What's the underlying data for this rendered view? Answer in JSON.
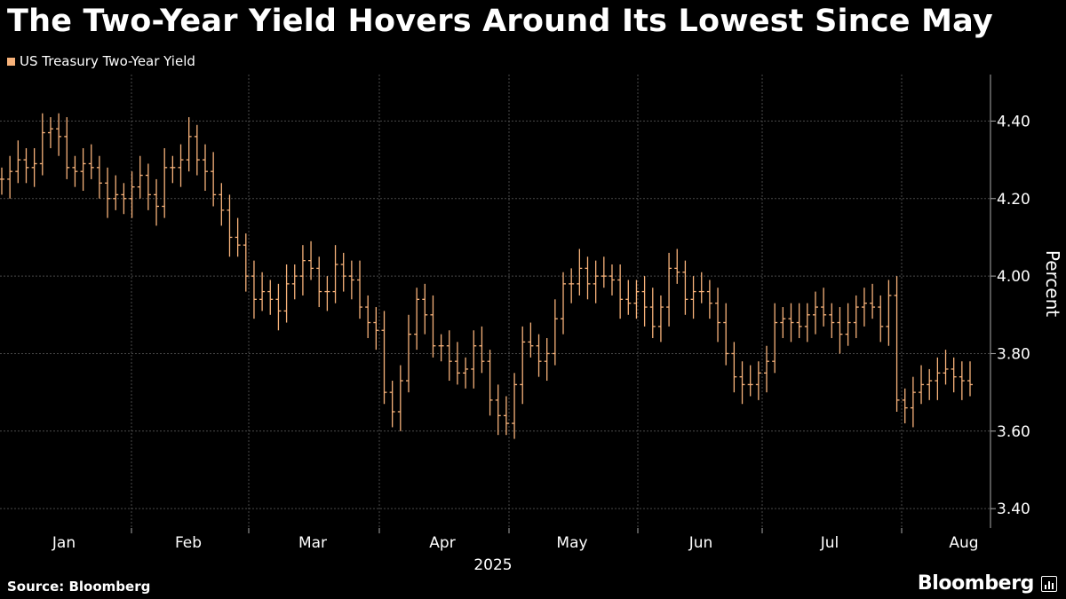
{
  "header": {
    "title": "The Two-Year Yield Hovers Around Its Lowest Since May",
    "legend_label": "US Treasury Two-Year Yield"
  },
  "footer": {
    "source": "Source: Bloomberg",
    "brand": "Bloomberg"
  },
  "colors": {
    "background": "#000000",
    "series": "#f7b27a",
    "grid": "#4a4a4a",
    "axis_text": "#ffffff"
  },
  "chart_data": {
    "type": "ohlc",
    "title": "The Two-Year Yield Hovers Around Its Lowest Since May",
    "ylabel": "Percent",
    "year_label": "2025",
    "ylim": [
      3.35,
      4.52
    ],
    "yticks": [
      3.4,
      3.6,
      3.8,
      4.0,
      4.2,
      4.4
    ],
    "ytick_labels": [
      "3.40",
      "3.60",
      "3.80",
      "4.00",
      "4.20",
      "4.40"
    ],
    "month_labels": [
      "Jan",
      "Feb",
      "Mar",
      "Apr",
      "May",
      "Jun",
      "Jul",
      "Aug"
    ],
    "grid": true,
    "series": [
      {
        "name": "US Treasury Two-Year Yield",
        "close": [
          4.25,
          4.27,
          4.3,
          4.28,
          4.29,
          4.37,
          4.38,
          4.36,
          4.28,
          4.27,
          4.29,
          4.28,
          4.24,
          4.2,
          4.21,
          4.2,
          4.23,
          4.26,
          4.21,
          4.18,
          4.28,
          4.28,
          4.3,
          4.36,
          4.3,
          4.27,
          4.21,
          4.17,
          4.1,
          4.08,
          4.0,
          3.94,
          3.96,
          3.94,
          3.91,
          3.98,
          4.0,
          4.04,
          4.02,
          3.96,
          3.96,
          4.03,
          4.0,
          3.99,
          3.92,
          3.88,
          3.86,
          3.7,
          3.65,
          3.73,
          3.85,
          3.94,
          3.9,
          3.82,
          3.82,
          3.78,
          3.75,
          3.76,
          3.82,
          3.78,
          3.68,
          3.64,
          3.62,
          3.72,
          3.83,
          3.82,
          3.78,
          3.8,
          3.89,
          3.98,
          3.98,
          4.02,
          3.98,
          4.0,
          4.0,
          3.99,
          3.94,
          3.93,
          3.96,
          3.92,
          3.87,
          3.92,
          4.02,
          4.01,
          3.94,
          3.96,
          3.96,
          3.93,
          3.88,
          3.8,
          3.74,
          3.72,
          3.72,
          3.75,
          3.78,
          3.88,
          3.89,
          3.88,
          3.87,
          3.9,
          3.92,
          3.9,
          3.88,
          3.85,
          3.88,
          3.92,
          3.93,
          3.92,
          3.87,
          3.95,
          3.68,
          3.66,
          3.7,
          3.72,
          3.73,
          3.75,
          3.76,
          3.74,
          3.73,
          3.72
        ]
      }
    ]
  }
}
